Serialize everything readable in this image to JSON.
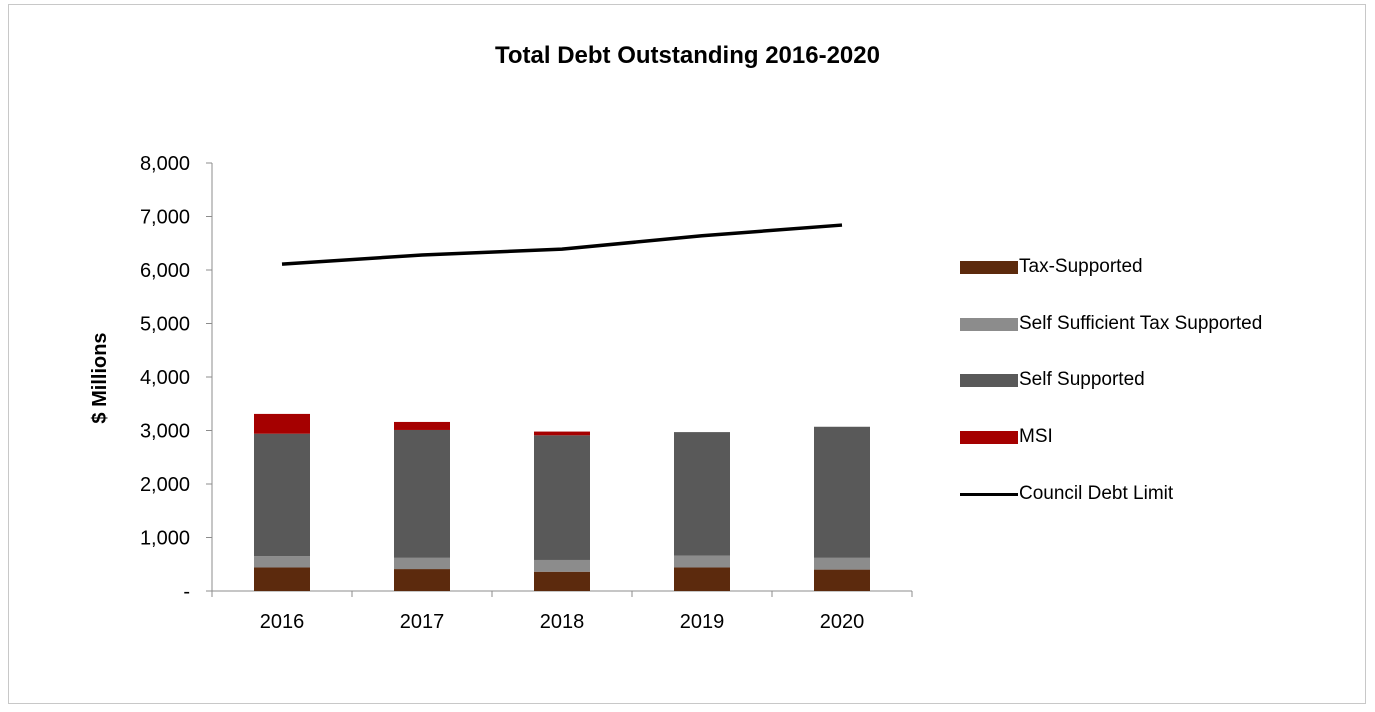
{
  "chart_data": {
    "type": "bar",
    "stacked": true,
    "title": "Total Debt Outstanding 2016-2020",
    "xlabel": "",
    "ylabel": "$ Millions",
    "categories": [
      "2016",
      "2017",
      "2018",
      "2019",
      "2020"
    ],
    "ylim": [
      0,
      8000
    ],
    "yticks": [
      0,
      1000,
      2000,
      3000,
      4000,
      5000,
      6000,
      7000,
      8000
    ],
    "ytick_labels": [
      "-",
      "1,000",
      "2,000",
      "3,000",
      "4,000",
      "5,000",
      "6,000",
      "7,000",
      "8,000"
    ],
    "series": [
      {
        "name": "Tax-Supported",
        "type": "bar",
        "color": "#5c2a0d",
        "values": [
          440,
          410,
          360,
          440,
          400
        ]
      },
      {
        "name": "Self Sufficient Tax Supported",
        "type": "bar",
        "color": "#8c8c8c",
        "values": [
          210,
          210,
          220,
          220,
          220
        ]
      },
      {
        "name": "Self Supported",
        "type": "bar",
        "color": "#595959",
        "values": [
          2290,
          2390,
          2330,
          2310,
          2450
        ]
      },
      {
        "name": "MSI",
        "type": "bar",
        "color": "#a50000",
        "values": [
          370,
          150,
          70,
          0,
          0
        ]
      },
      {
        "name": "Council Debt Limit",
        "type": "line",
        "color": "#000000",
        "values": [
          6110,
          6280,
          6390,
          6640,
          6840
        ]
      }
    ],
    "legend_position": "right",
    "grid": false
  }
}
